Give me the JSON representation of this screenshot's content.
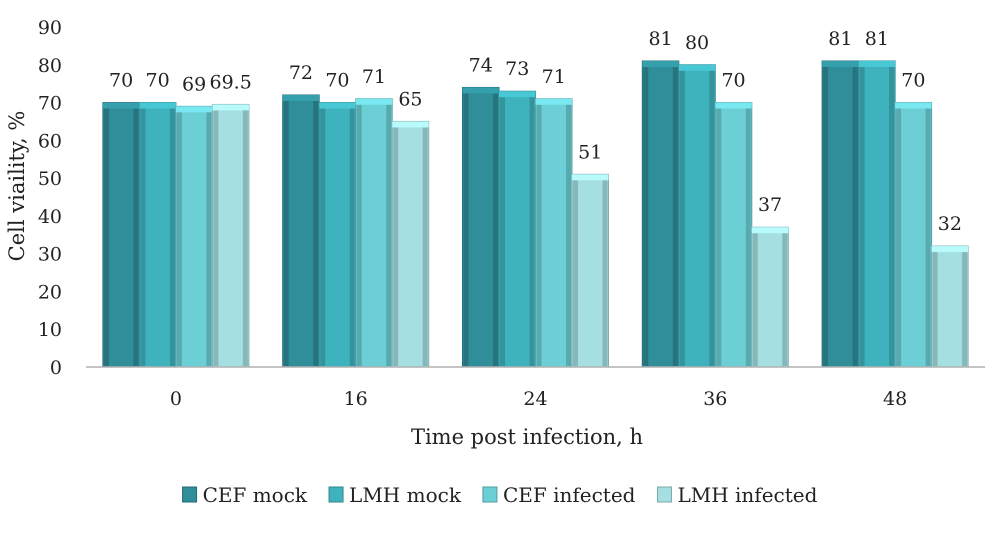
{
  "chart_data": {
    "type": "bar",
    "title": "",
    "xlabel": "Time post infection, h",
    "ylabel": "Cell viaility, %",
    "categories": [
      "0",
      "16",
      "24",
      "36",
      "48"
    ],
    "ylim": [
      0,
      90
    ],
    "yticks": [
      "0",
      "10",
      "20",
      "30",
      "40",
      "50",
      "60",
      "70",
      "80",
      "90"
    ],
    "grid": false,
    "legend_position": "bottom",
    "series": [
      {
        "name": "CEF mock",
        "color": "#2f8e9a",
        "values": [
          70,
          72,
          74,
          81,
          81
        ],
        "labels": [
          "70",
          "72",
          "74",
          "81",
          "81"
        ]
      },
      {
        "name": "LMH mock",
        "color": "#3fb3bd",
        "values": [
          70,
          70,
          73,
          80,
          81
        ],
        "labels": [
          "70",
          "70",
          "73",
          "80",
          "81"
        ]
      },
      {
        "name": "CEF infected",
        "color": "#6ccfd6",
        "values": [
          69,
          71,
          71,
          70,
          70
        ],
        "labels": [
          "69",
          "71",
          "71",
          "70",
          "70"
        ]
      },
      {
        "name": "LMH infected",
        "color": "#a5dfe2",
        "values": [
          69.5,
          65,
          51,
          37,
          32
        ],
        "labels": [
          "69.5",
          "65",
          "51",
          "37",
          "32"
        ]
      }
    ]
  }
}
